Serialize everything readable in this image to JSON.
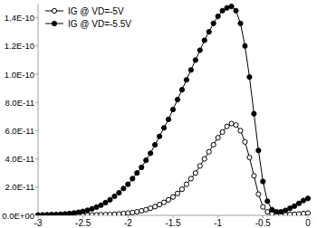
{
  "chart_data": {
    "type": "line",
    "x": [
      -3,
      -2.95,
      -2.9,
      -2.85,
      -2.8,
      -2.75,
      -2.7,
      -2.65,
      -2.6,
      -2.55,
      -2.5,
      -2.45,
      -2.4,
      -2.35,
      -2.3,
      -2.25,
      -2.2,
      -2.15,
      -2.1,
      -2.05,
      -2,
      -1.95,
      -1.9,
      -1.85,
      -1.8,
      -1.75,
      -1.7,
      -1.65,
      -1.6,
      -1.55,
      -1.5,
      -1.45,
      -1.4,
      -1.35,
      -1.3,
      -1.25,
      -1.2,
      -1.15,
      -1.1,
      -1.05,
      -1,
      -0.95,
      -0.9,
      -0.85,
      -0.8,
      -0.75,
      -0.7,
      -0.65,
      -0.6,
      -0.55,
      -0.5,
      -0.45,
      -0.4,
      -0.35,
      -0.3,
      -0.25,
      -0.2,
      -0.15,
      -0.1,
      -0.05,
      0
    ],
    "series": [
      {
        "name": "IG @ VD=-5V",
        "color": "#000000",
        "marker": "open-circle",
        "line_style": "solid",
        "values": [
          1e-13,
          1e-13,
          1e-13,
          1e-13,
          1e-13,
          1e-13,
          1e-13,
          1e-13,
          1e-13,
          1e-13,
          1e-13,
          1.5e-13,
          2e-13,
          3e-13,
          4e-13,
          5e-13,
          6e-13,
          8e-13,
          1e-12,
          1.3e-12,
          1.6e-12,
          2e-12,
          2.5e-12,
          3.2e-12,
          4e-12,
          5e-12,
          6.2e-12,
          7.6e-12,
          9.2e-12,
          1.1e-11,
          1.3e-11,
          1.55e-11,
          1.85e-11,
          2.2e-11,
          2.6e-11,
          3e-11,
          3.5e-11,
          4e-11,
          4.5e-11,
          5e-11,
          5.5e-11,
          5.9e-11,
          6.3e-11,
          6.5e-11,
          6.4e-11,
          6e-11,
          5.2e-11,
          4.1e-11,
          2.8e-11,
          1.5e-11,
          6e-12,
          2.5e-12,
          1.2e-12,
          8e-13,
          6e-13,
          6e-13,
          7e-13,
          8e-13,
          1e-12,
          1.3e-12,
          1.6e-12
        ]
      },
      {
        "name": "IG @ VD=-5.5V",
        "color": "#000000",
        "marker": "filled-circle",
        "line_style": "solid",
        "values": [
          2e-13,
          3e-13,
          4e-13,
          5e-13,
          6e-13,
          8e-13,
          1e-12,
          1.3e-12,
          1.7e-12,
          2.2e-12,
          2.8e-12,
          3.6e-12,
          4.6e-12,
          5.8e-12,
          7.2e-12,
          9e-12,
          1.1e-11,
          1.35e-11,
          1.6e-11,
          1.9e-11,
          2.2e-11,
          2.6e-11,
          3e-11,
          3.4e-11,
          3.9e-11,
          4.4e-11,
          5e-11,
          5.6e-11,
          6.2e-11,
          6.8e-11,
          7.5e-11,
          8.2e-11,
          8.9e-11,
          9.6e-11,
          1.03e-10,
          1.1e-10,
          1.17e-10,
          1.24e-10,
          1.3e-10,
          1.36e-10,
          1.41e-10,
          1.45e-10,
          1.47e-10,
          1.48e-10,
          1.45e-10,
          1.36e-10,
          1.2e-10,
          9.8e-11,
          7.2e-11,
          4.6e-11,
          2.4e-11,
          1e-11,
          4e-12,
          2.5e-12,
          2.5e-12,
          3.5e-12,
          5e-12,
          6.5e-12,
          8.5e-12,
          1.05e-11,
          1.2e-11
        ]
      }
    ],
    "xlim": [
      -3,
      0
    ],
    "xticks": [
      -3,
      -2.5,
      -2,
      -1.5,
      -1,
      -0.5,
      0
    ],
    "ylim": [
      0,
      1.5e-10
    ],
    "yticks": [
      {
        "value": 0,
        "label": "0.0E+00"
      },
      {
        "value": 2e-11,
        "label": "2.0E-11"
      },
      {
        "value": 4e-11,
        "label": "4.0E-11"
      },
      {
        "value": 6e-11,
        "label": "6.0E-11"
      },
      {
        "value": 8e-11,
        "label": "8.0E-11"
      },
      {
        "value": 1e-10,
        "label": "1.0E-10"
      },
      {
        "value": 1.2e-10,
        "label": "1.2E-10"
      },
      {
        "value": 1.4e-10,
        "label": "1.4E-10"
      }
    ],
    "grid": false,
    "legend": "top-left"
  }
}
